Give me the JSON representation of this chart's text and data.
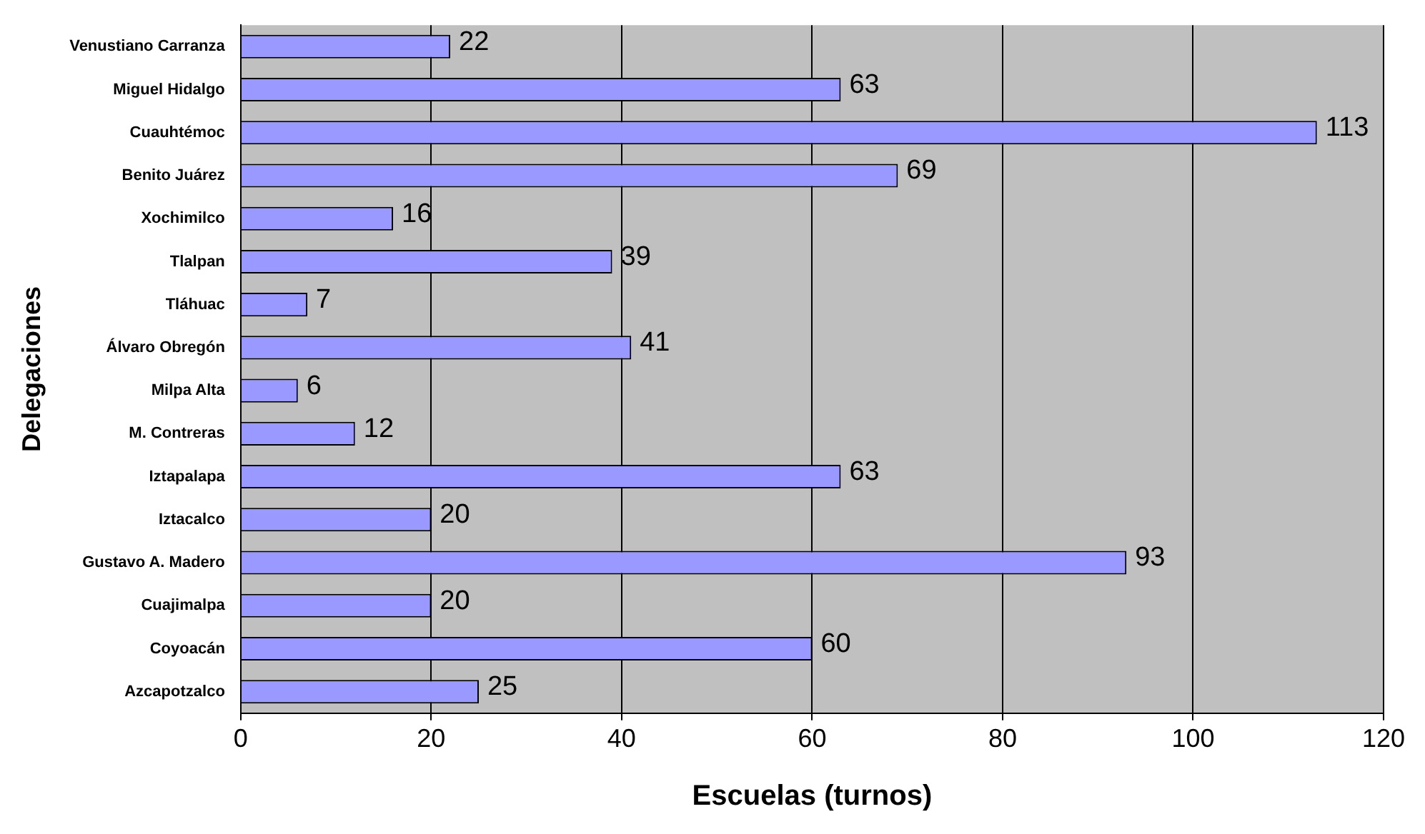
{
  "chart_data": {
    "type": "bar",
    "orientation": "horizontal",
    "xlabel": "Escuelas (turnos)",
    "ylabel": "Delegaciones",
    "categories": [
      "Venustiano Carranza",
      "Miguel Hidalgo",
      "Cuauhtémoc",
      "Benito Juárez",
      "Xochimilco",
      "Tlalpan",
      "Tláhuac",
      "Álvaro Obregón",
      "Milpa Alta",
      "M. Contreras",
      "Iztapalapa",
      "Iztacalco",
      "Gustavo A. Madero",
      "Cuajimalpa",
      "Coyoacán",
      "Azcapotzalco"
    ],
    "values": [
      22,
      63,
      113,
      69,
      16,
      39,
      7,
      41,
      6,
      12,
      63,
      20,
      93,
      20,
      60,
      25
    ],
    "color": "#9999ff",
    "xlim": [
      0,
      120
    ],
    "xticks": [
      0,
      20,
      40,
      60,
      80,
      100,
      120
    ],
    "grid": "x",
    "data_labels": true,
    "legend": false
  }
}
